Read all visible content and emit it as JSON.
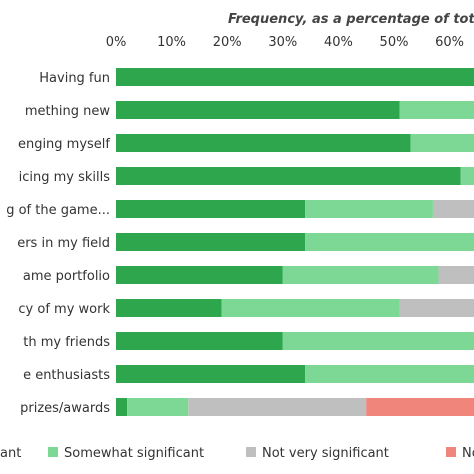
{
  "chart_data": {
    "type": "bar",
    "orientation": "horizontal",
    "stacked": true,
    "title": "Frequency, as a percentage of tot",
    "xlim": [
      0,
      70
    ],
    "x_ticks": [
      "0%",
      "10%",
      "20%",
      "30%",
      "40%",
      "50%",
      "60%"
    ],
    "categories": [
      "Having fun",
      "mething new",
      "enging myself",
      "icing my skills",
      "g of the game...",
      "ers in my field",
      "ame portfolio",
      "cy of my work",
      "th my friends",
      "e enthusiasts",
      "prizes/awards"
    ],
    "series": [
      {
        "name": "ant",
        "color": "#2ea64d",
        "values": [
          65,
          51,
          53,
          62,
          34,
          34,
          30,
          19,
          30,
          34,
          2
        ]
      },
      {
        "name": "Somewhat significant",
        "color": "#7dd896",
        "values": [
          5,
          19,
          17,
          8,
          23,
          36,
          28,
          32,
          40,
          36,
          11
        ]
      },
      {
        "name": "Not very significant",
        "color": "#bfbfbf",
        "values": [
          0,
          0,
          0,
          0,
          13,
          0,
          12,
          19,
          0,
          0,
          32
        ]
      },
      {
        "name": "No",
        "color": "#f0857c",
        "values": [
          0,
          0,
          0,
          0,
          0,
          0,
          0,
          0,
          0,
          0,
          25
        ]
      }
    ],
    "grid": false,
    "legend_position": "bottom"
  }
}
